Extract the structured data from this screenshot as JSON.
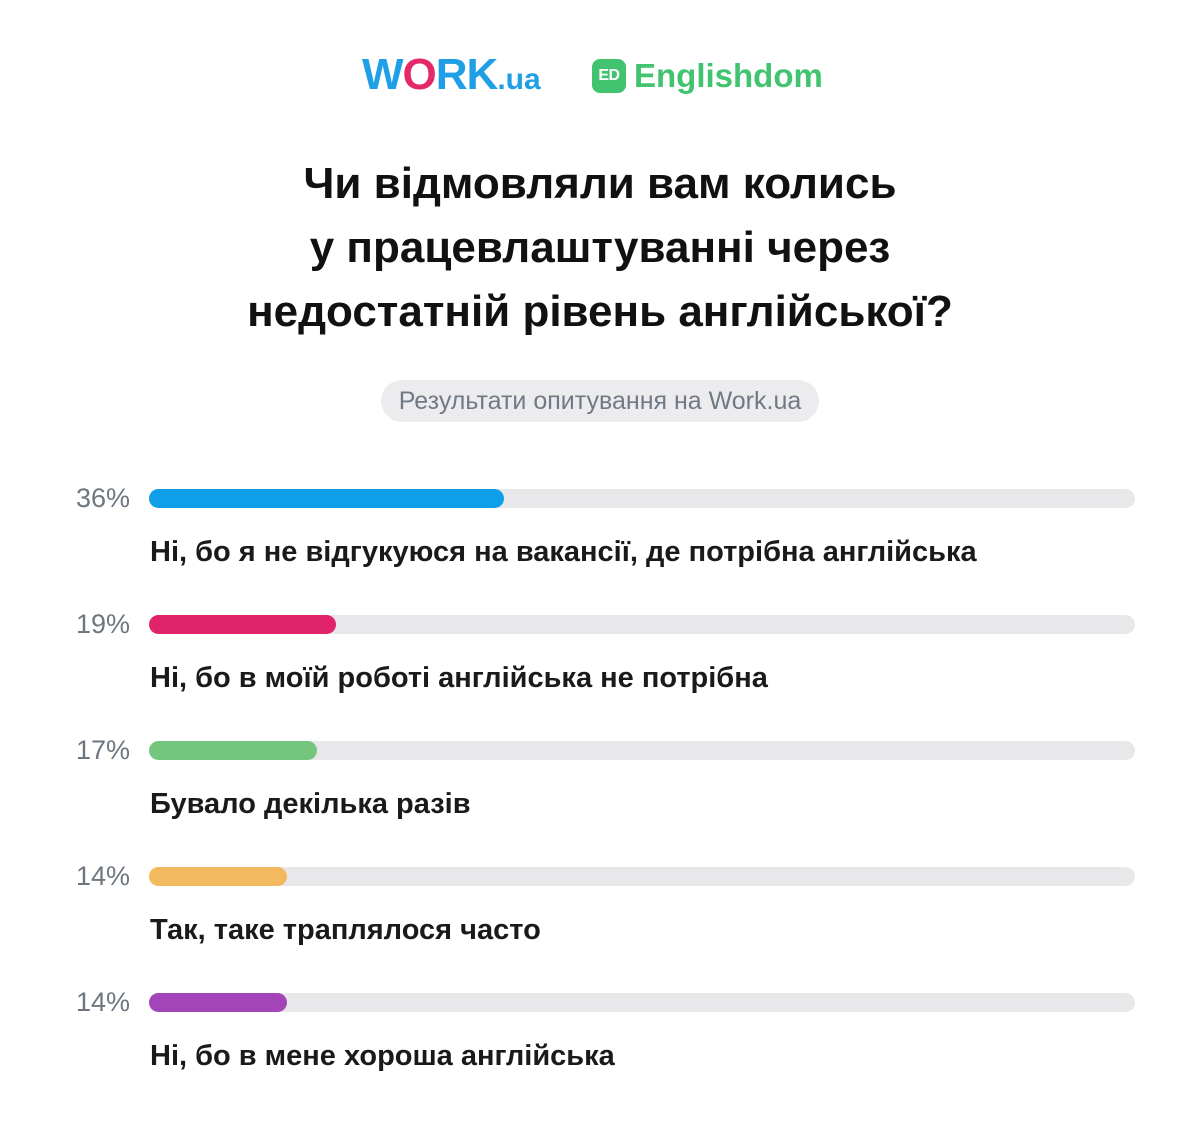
{
  "logos": {
    "work": {
      "part1": "W",
      "part2": "O",
      "part3": "RK",
      "part4": ".ua"
    },
    "englishdom": {
      "badge": "ED",
      "name": "Englishdom"
    }
  },
  "colors": {
    "work_blue": "#1fa0e6",
    "work_pink": "#e3296a",
    "englishdom_green": "#42c36f",
    "track": "#e8e8ea"
  },
  "chart_data": {
    "type": "bar",
    "orientation": "horizontal",
    "title_lines": [
      "Чи відмовляли вам колись",
      "у працевлаштуванні через",
      "недостатній рівень англійської?"
    ],
    "subtitle": "Результати опитування на Work.ua",
    "unit": "%",
    "xlim": [
      0,
      100
    ],
    "items": [
      {
        "label": "Ні, бо я не відгукуюся на вакансії, де потрібна англійська",
        "value": 36,
        "value_label": "36%",
        "color": "#0f9fe8"
      },
      {
        "label": "Ні, бо в моїй роботі англійська не потрібна",
        "value": 19,
        "value_label": "19%",
        "color": "#e1246a"
      },
      {
        "label": "Бувало декілька разів",
        "value": 17,
        "value_label": "17%",
        "color": "#74c67e"
      },
      {
        "label": "Так, таке траплялося часто",
        "value": 14,
        "value_label": "14%",
        "color": "#f2b95e"
      },
      {
        "label": "Ні, бо в мене хороша англійська",
        "value": 14,
        "value_label": "14%",
        "color": "#a344b9"
      }
    ]
  }
}
